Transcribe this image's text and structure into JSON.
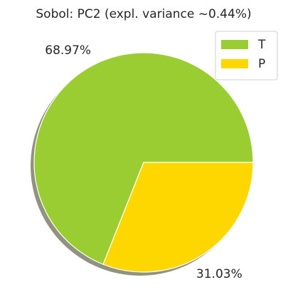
{
  "chart_data": {
    "type": "pie",
    "title": "Sobol: PC2 (expl. variance ~0.44%)",
    "categories": [
      "T",
      "P"
    ],
    "values": [
      68.97,
      31.03
    ],
    "value_labels": [
      "68.97%",
      "31.03%"
    ],
    "colors": [
      "#9acd32",
      "#ffd700"
    ],
    "shadow": true,
    "legend": "upper right"
  }
}
